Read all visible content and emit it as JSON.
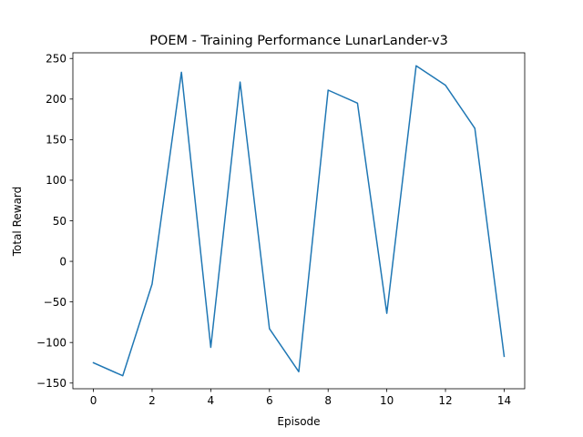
{
  "chart_data": {
    "type": "line",
    "title": "POEM - Training Performance LunarLander-v3",
    "xlabel": "Episode",
    "ylabel": "Total Reward",
    "x": [
      0,
      1,
      2,
      3,
      4,
      5,
      6,
      7,
      8,
      9,
      10,
      11,
      12,
      13,
      14
    ],
    "series": [
      {
        "values": [
          -125,
          -141,
          -28,
          233,
          -106,
          221,
          -83,
          -136,
          211,
          195,
          -64,
          241,
          217,
          164,
          -117
        ],
        "color": "#1f77b4"
      }
    ],
    "xlim": [
      -0.7,
      14.7
    ],
    "ylim": [
      -157,
      257
    ],
    "xticks": [
      0,
      2,
      4,
      6,
      8,
      10,
      12,
      14
    ],
    "yticks": [
      -150,
      -100,
      -50,
      0,
      50,
      100,
      150,
      200,
      250
    ],
    "grid": false,
    "legend": "none"
  }
}
